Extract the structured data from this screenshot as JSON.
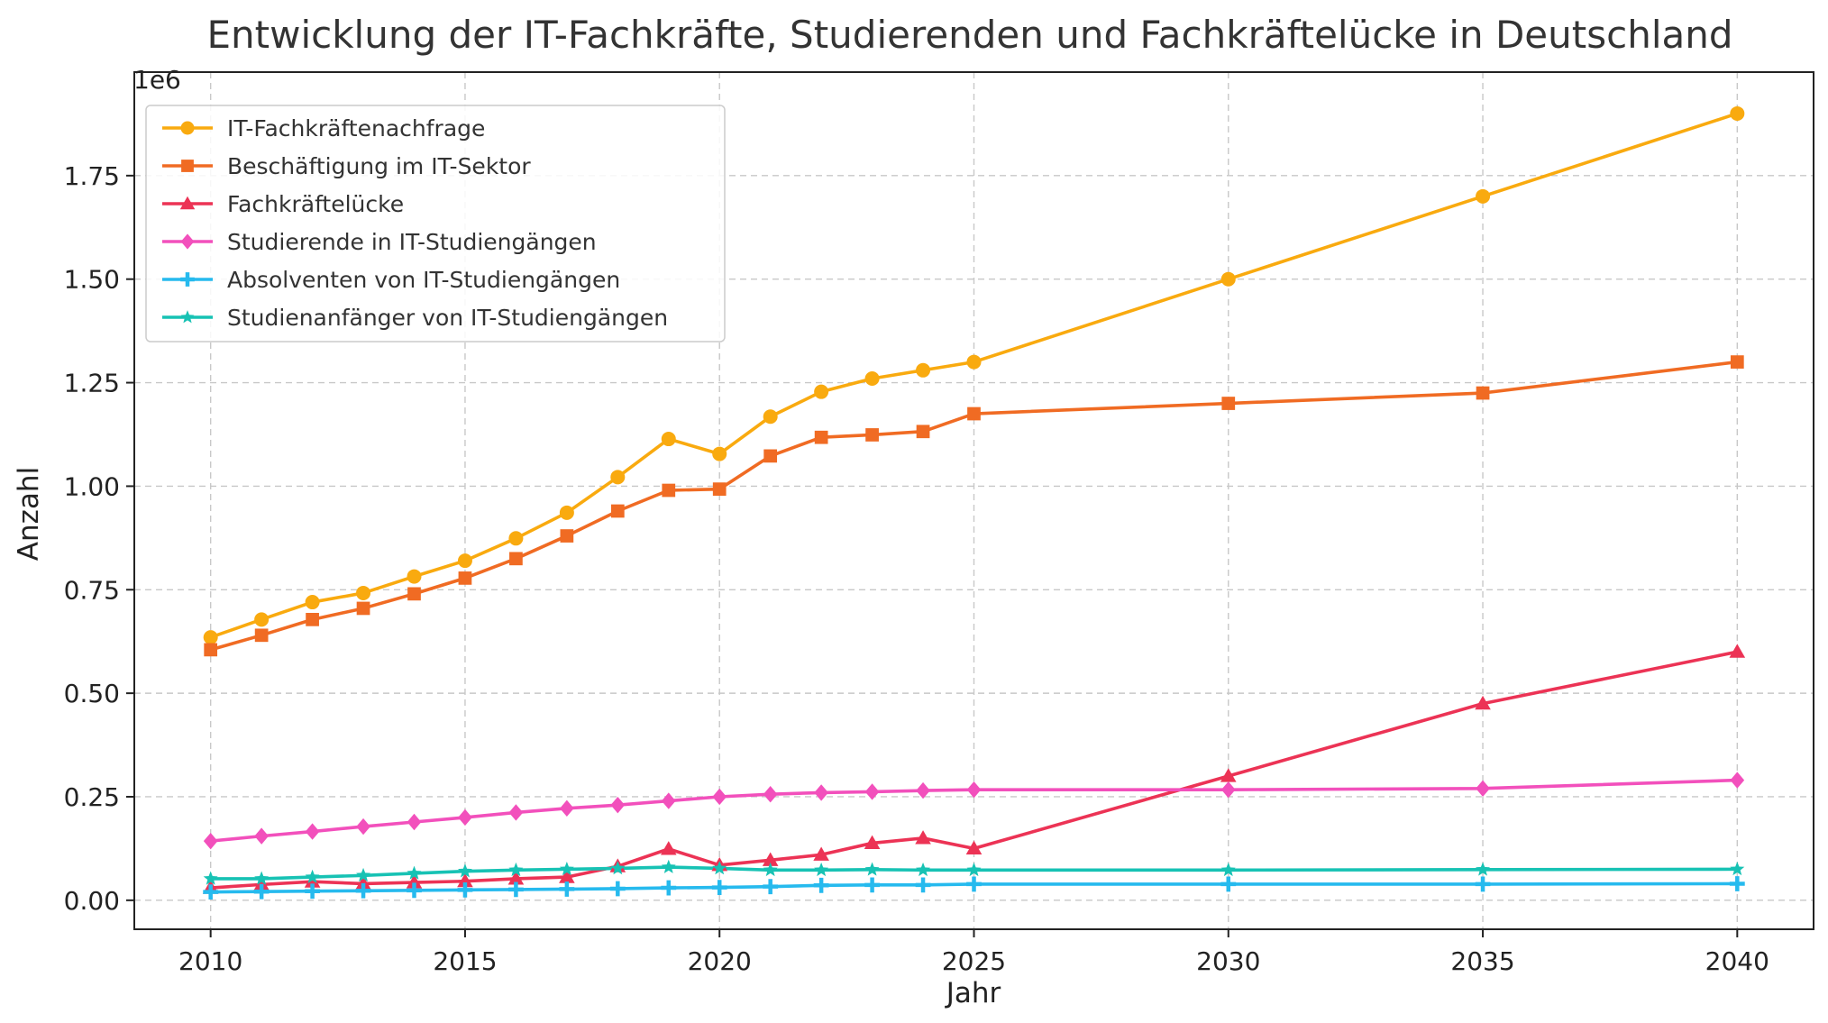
{
  "chart_data": {
    "type": "line",
    "title": "Entwicklung der IT-Fachkräfte, Studierenden und Fachkräftelücke in Deutschland",
    "xlabel": "Jahr",
    "ylabel": "Anzahl",
    "offset_text": "1e6",
    "x": [
      2010,
      2011,
      2012,
      2013,
      2014,
      2015,
      2016,
      2017,
      2018,
      2019,
      2020,
      2021,
      2022,
      2023,
      2024,
      2025,
      2030,
      2035,
      2040
    ],
    "xlim": [
      2008.5,
      2041.5
    ],
    "ylim": [
      -0.07,
      2.0
    ],
    "x_ticks": [
      2010,
      2015,
      2020,
      2025,
      2030,
      2035,
      2040
    ],
    "y_ticks": [
      0.0,
      0.25,
      0.5,
      0.75,
      1.0,
      1.25,
      1.5,
      1.75
    ],
    "y_tick_labels": [
      "0.00",
      "0.25",
      "0.50",
      "0.75",
      "1.00",
      "1.25",
      "1.50",
      "1.75"
    ],
    "grid": true,
    "legend_position": "top-left",
    "series": [
      {
        "name": "IT-Fachkräftenachfrage",
        "color": "#F9AA0F",
        "marker": "circle",
        "values": [
          0.635,
          0.678,
          0.72,
          0.742,
          0.782,
          0.82,
          0.874,
          0.936,
          1.022,
          1.114,
          1.078,
          1.168,
          1.228,
          1.26,
          1.28,
          1.3,
          1.5,
          1.7,
          1.9
        ]
      },
      {
        "name": "Beschäftigung im IT-Sektor",
        "color": "#F06B23",
        "marker": "square",
        "values": [
          0.605,
          0.64,
          0.678,
          0.705,
          0.74,
          0.778,
          0.825,
          0.88,
          0.94,
          0.99,
          0.993,
          1.073,
          1.118,
          1.124,
          1.132,
          1.175,
          1.2,
          1.225,
          1.3
        ]
      },
      {
        "name": "Fachkräftelücke",
        "color": "#EC3355",
        "marker": "triangle",
        "values": [
          0.03,
          0.038,
          0.045,
          0.04,
          0.043,
          0.046,
          0.052,
          0.056,
          0.082,
          0.124,
          0.085,
          0.097,
          0.11,
          0.138,
          0.15,
          0.125,
          0.3,
          0.475,
          0.6
        ]
      },
      {
        "name": "Studierende in IT-Studiengängen",
        "color": "#F250BC",
        "marker": "diamond",
        "values": [
          0.143,
          0.155,
          0.166,
          0.178,
          0.189,
          0.2,
          0.212,
          0.222,
          0.23,
          0.24,
          0.25,
          0.256,
          0.26,
          0.262,
          0.265,
          0.267,
          0.267,
          0.27,
          0.29
        ]
      },
      {
        "name": "Absolventen von IT-Studiengängen",
        "color": "#26BAEE",
        "marker": "plus",
        "values": [
          0.02,
          0.021,
          0.022,
          0.023,
          0.024,
          0.025,
          0.026,
          0.027,
          0.028,
          0.03,
          0.031,
          0.033,
          0.036,
          0.037,
          0.037,
          0.039,
          0.039,
          0.039,
          0.04
        ]
      },
      {
        "name": "Studienanfänger von IT-Studiengängen",
        "color": "#17C2B4",
        "marker": "star",
        "values": [
          0.052,
          0.052,
          0.056,
          0.06,
          0.065,
          0.07,
          0.073,
          0.075,
          0.077,
          0.08,
          0.077,
          0.073,
          0.073,
          0.074,
          0.073,
          0.073,
          0.073,
          0.074,
          0.075
        ]
      }
    ]
  }
}
